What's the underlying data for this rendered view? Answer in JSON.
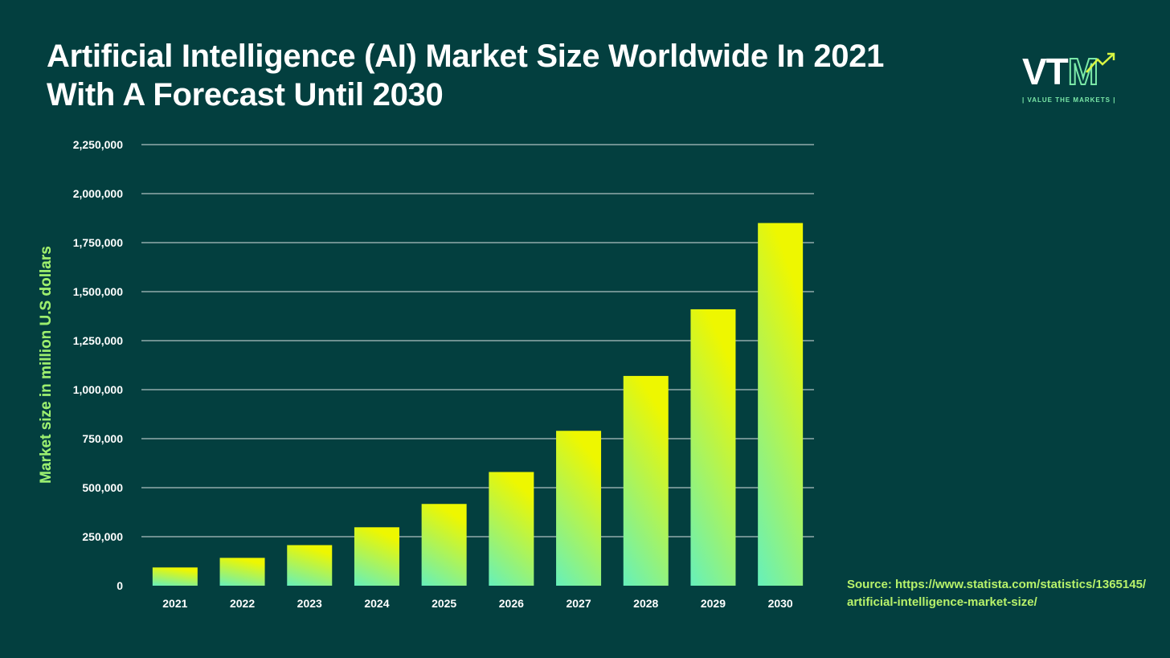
{
  "title": "Artificial Intelligence (AI) Market Size Worldwide In 2021 With A Forecast Until 2030",
  "logo": {
    "letters": "VTM",
    "tagline": "| VALUE THE MARKETS |",
    "icon": "arrow-up-right-icon"
  },
  "source": {
    "line1": "Source: https://www.statista.com/statistics/1365145/",
    "line2": "artificial-intelligence-market-size/"
  },
  "colors": {
    "background": "#033f3f",
    "bar_top": "#eef700",
    "bar_bottom": "#66f0bb",
    "gridline": "#ffffff",
    "text": "#ffffff",
    "accent": "#7be8a8"
  },
  "chart_data": {
    "type": "bar",
    "title": "Artificial Intelligence (AI) Market Size Worldwide In 2021 With A Forecast Until 2030",
    "xlabel": "",
    "ylabel": "Market size in million U.S dollars",
    "categories": [
      "2021",
      "2022",
      "2023",
      "2024",
      "2025",
      "2026",
      "2027",
      "2028",
      "2029",
      "2030"
    ],
    "values": [
      93000,
      142000,
      207000,
      298000,
      417000,
      580000,
      790000,
      1070000,
      1410000,
      1850000
    ],
    "ylim": [
      0,
      2250000
    ],
    "yticks": [
      0,
      250000,
      500000,
      750000,
      1000000,
      1250000,
      1500000,
      1750000,
      2000000,
      2250000
    ],
    "ytick_labels": [
      "0",
      "250,000",
      "500,000",
      "750,000",
      "1,000,000",
      "1,250,000",
      "1,500,000",
      "1,750,000",
      "2,000,000",
      "2,250,000"
    ],
    "grid": true,
    "legend": "none"
  }
}
